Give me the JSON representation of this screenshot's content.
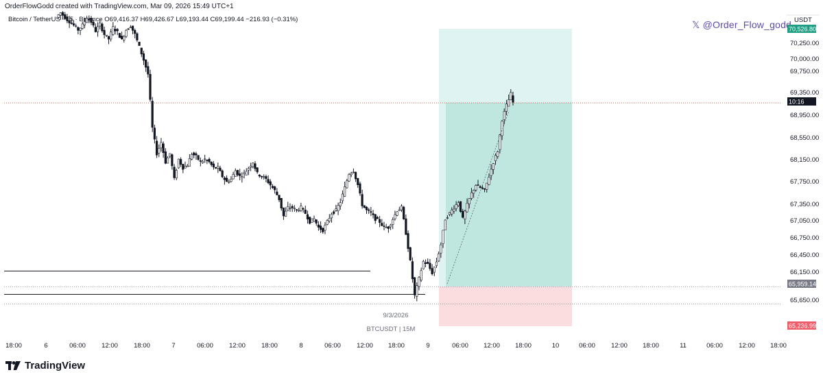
{
  "header": {
    "created_by": "OrderFlowGodd created with TradingView.com, Mar 09, 2026 15:49 UTC+1",
    "symbol_line": "Bitcoin / TetherUS · 15 · Binance O69,416.37 H69,426.67 L69,193.44 C69,199.44 −216.93 (−0.31%)"
  },
  "watermark": "𝕏 @Order_Flow_godd",
  "footer": {
    "brand": "TradingView"
  },
  "colors": {
    "candle": "#131722",
    "target_zone": "#bfe6df",
    "target_zone_light": "#dff3f0",
    "stop_zone": "#fbdde0",
    "price_line": "#e0634f",
    "stop_label": "#ef5d6b",
    "target_label": "#1f9e84",
    "entry_label": "#787b86"
  },
  "chart_data": {
    "type": "candlestick",
    "title": "",
    "pair": "BTCUSDT",
    "timeframe_label": "BTCUSDT | 15M",
    "date_label": "9/3/2026",
    "currency_label": "USDT",
    "y_axis_ticks": [
      "70,250.00",
      "70,000.00",
      "69,750.00",
      "69,350.00",
      "68,950.00",
      "68,550.00",
      "68,150.00",
      "67,750.00",
      "67,350.00",
      "67,050.00",
      "66,750.00",
      "66,450.00",
      "66,150.00",
      "65,650.00"
    ],
    "x_axis_ticks": [
      "18:00",
      "6",
      "06:00",
      "12:00",
      "18:00",
      "7",
      "06:00",
      "12:00",
      "18:00",
      "8",
      "06:00",
      "12:00",
      "18:00",
      "9",
      "06:00",
      "12:00",
      "18:00",
      "10",
      "06:00",
      "12:00",
      "18:00",
      "11",
      "06:00",
      "12:00",
      "18:00"
    ],
    "ylim": [
      65150,
      70560
    ],
    "current_price": 69199.44,
    "countdown": "10:16",
    "position": {
      "side": "long",
      "entry": 65959.14,
      "target": 70526.8,
      "stop": 65236.99,
      "entry_label": "65,959.14",
      "target_label": "70,526.80",
      "stop_label": "65,236.99"
    },
    "horizontal_lines": [
      66210,
      65790,
      65570
    ],
    "price_path": [
      [
        0,
        70700
      ],
      [
        2,
        70780
      ],
      [
        5,
        70660
      ],
      [
        8,
        70560
      ],
      [
        10,
        70480
      ],
      [
        12,
        70560
      ],
      [
        14,
        70700
      ],
      [
        16,
        70620
      ],
      [
        18,
        70460
      ],
      [
        20,
        70580
      ],
      [
        22,
        70400
      ],
      [
        24,
        70320
      ],
      [
        26,
        70520
      ],
      [
        28,
        70440
      ],
      [
        30,
        70300
      ],
      [
        32,
        70480
      ],
      [
        34,
        70550
      ],
      [
        36,
        70400
      ],
      [
        38,
        70180
      ],
      [
        40,
        69950
      ],
      [
        42,
        69700
      ],
      [
        44,
        68750
      ],
      [
        46,
        68300
      ],
      [
        48,
        68500
      ],
      [
        50,
        68150
      ],
      [
        52,
        68300
      ],
      [
        54,
        67850
      ],
      [
        56,
        68200
      ],
      [
        58,
        68050
      ],
      [
        60,
        68100
      ],
      [
        62,
        68300
      ],
      [
        64,
        68250
      ],
      [
        66,
        68150
      ],
      [
        68,
        68200
      ],
      [
        70,
        68150
      ],
      [
        72,
        68050
      ],
      [
        74,
        68050
      ],
      [
        76,
        67900
      ],
      [
        78,
        67800
      ],
      [
        80,
        67850
      ],
      [
        82,
        68000
      ],
      [
        84,
        67900
      ],
      [
        86,
        67950
      ],
      [
        88,
        68050
      ],
      [
        90,
        68150
      ],
      [
        92,
        67950
      ],
      [
        94,
        67900
      ],
      [
        96,
        67850
      ],
      [
        98,
        67750
      ],
      [
        100,
        67650
      ],
      [
        102,
        67500
      ],
      [
        104,
        67200
      ],
      [
        106,
        67350
      ],
      [
        108,
        67350
      ],
      [
        110,
        67300
      ],
      [
        112,
        67350
      ],
      [
        114,
        67250
      ],
      [
        116,
        67100
      ],
      [
        118,
        67150
      ],
      [
        120,
        67000
      ],
      [
        122,
        66950
      ],
      [
        124,
        67100
      ],
      [
        126,
        67250
      ],
      [
        128,
        67300
      ],
      [
        130,
        67450
      ],
      [
        132,
        67700
      ],
      [
        134,
        67950
      ],
      [
        136,
        68000
      ],
      [
        138,
        67750
      ],
      [
        140,
        67400
      ],
      [
        142,
        67300
      ],
      [
        144,
        67250
      ],
      [
        146,
        67150
      ],
      [
        148,
        67100
      ],
      [
        150,
        67000
      ],
      [
        152,
        67000
      ],
      [
        154,
        67150
      ],
      [
        156,
        67300
      ],
      [
        158,
        67350
      ],
      [
        160,
        66900
      ],
      [
        162,
        66400
      ],
      [
        164,
        65800
      ],
      [
        166,
        66100
      ],
      [
        168,
        66400
      ],
      [
        170,
        66350
      ],
      [
        172,
        66200
      ],
      [
        174,
        66400
      ],
      [
        176,
        66700
      ],
      [
        178,
        67150
      ],
      [
        180,
        67250
      ],
      [
        182,
        67350
      ],
      [
        184,
        67450
      ],
      [
        186,
        67150
      ],
      [
        188,
        67400
      ],
      [
        190,
        67600
      ],
      [
        192,
        67750
      ],
      [
        194,
        67700
      ],
      [
        196,
        67650
      ],
      [
        198,
        67900
      ],
      [
        200,
        68150
      ],
      [
        202,
        68350
      ],
      [
        204,
        68900
      ],
      [
        206,
        69150
      ],
      [
        208,
        69350
      ],
      [
        209,
        69200
      ]
    ]
  }
}
